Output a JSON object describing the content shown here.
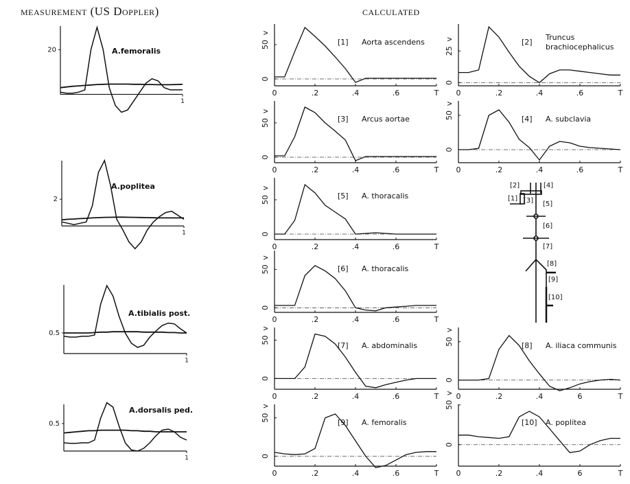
{
  "headers": {
    "measurement": "measurement (US Doppler)",
    "calculated": "calculated"
  },
  "chart_data": [
    {
      "type": "line",
      "title": "A.femoralis",
      "x": [
        0,
        0.05,
        0.1,
        0.15,
        0.2,
        0.25,
        0.3,
        0.35,
        0.4,
        0.45,
        0.5,
        0.55,
        0.6,
        0.65,
        0.7,
        0.75,
        0.8,
        0.85,
        0.9,
        0.95,
        1
      ],
      "series": [
        {
          "values": [
            1,
            0.5,
            0.5,
            1,
            2,
            20,
            30,
            20,
            3,
            -5,
            -8,
            -7,
            -3,
            1,
            5,
            7,
            6,
            3,
            2,
            2,
            2
          ]
        },
        {
          "values": [
            3,
            3.3,
            3.6,
            3.8,
            4,
            4.2,
            4.4,
            4.5,
            4.6,
            4.6,
            4.6,
            4.6,
            4.5,
            4.5,
            4.4,
            4.4,
            4.3,
            4.3,
            4.3,
            4.4,
            4.5
          ]
        }
      ],
      "xlim": [
        0,
        1
      ],
      "xticks": [
        1
      ],
      "ylim": [
        -10,
        33
      ],
      "yticks": [
        20
      ]
    },
    {
      "type": "line",
      "title": "A.poplitea",
      "x": [
        0,
        0.05,
        0.1,
        0.15,
        0.2,
        0.25,
        0.3,
        0.35,
        0.4,
        0.45,
        0.5,
        0.55,
        0.6,
        0.65,
        0.7,
        0.75,
        0.8,
        0.85,
        0.9,
        0.95,
        1
      ],
      "series": [
        {
          "values": [
            0.3,
            0.2,
            0.1,
            0.2,
            0.3,
            1.5,
            4,
            4.9,
            3,
            0.5,
            -0.3,
            -1.2,
            -1.7,
            -1.2,
            -0.3,
            0.3,
            0.7,
            1,
            1.1,
            0.8,
            0.5
          ]
        },
        {
          "values": [
            0.45,
            0.5,
            0.52,
            0.55,
            0.57,
            0.6,
            0.62,
            0.64,
            0.65,
            0.66,
            0.66,
            0.65,
            0.64,
            0.63,
            0.62,
            0.61,
            0.6,
            0.6,
            0.6,
            0.6,
            0.6
          ]
        }
      ],
      "xlim": [
        0,
        1
      ],
      "xticks": [
        1
      ],
      "ylim": [
        -2,
        5.3
      ],
      "yticks": [
        2
      ]
    },
    {
      "type": "line",
      "title": "A.tibialis post.",
      "x": [
        0,
        0.05,
        0.1,
        0.15,
        0.2,
        0.25,
        0.3,
        0.35,
        0.4,
        0.45,
        0.5,
        0.55,
        0.6,
        0.65,
        0.7,
        0.75,
        0.8,
        0.85,
        0.9,
        0.95,
        1
      ],
      "series": [
        {
          "values": [
            0.42,
            0.4,
            0.4,
            0.42,
            0.42,
            0.45,
            1.2,
            1.65,
            1.4,
            0.9,
            0.5,
            0.25,
            0.15,
            0.2,
            0.4,
            0.55,
            0.68,
            0.74,
            0.72,
            0.6,
            0.5
          ]
        },
        {
          "values": [
            0.5,
            0.5,
            0.5,
            0.5,
            0.5,
            0.51,
            0.52,
            0.52,
            0.53,
            0.53,
            0.53,
            0.53,
            0.53,
            0.52,
            0.52,
            0.52,
            0.52,
            0.51,
            0.51,
            0.5,
            0.5
          ]
        }
      ],
      "xlim": [
        0,
        1
      ],
      "xticks": [
        1
      ],
      "ylim": [
        0,
        1.8
      ],
      "yticks": [
        0.5
      ]
    },
    {
      "type": "line",
      "title": "A.dorsalis ped.",
      "x": [
        0,
        0.05,
        0.1,
        0.15,
        0.2,
        0.25,
        0.3,
        0.35,
        0.4,
        0.45,
        0.5,
        0.55,
        0.6,
        0.65,
        0.7,
        0.75,
        0.8,
        0.85,
        0.9,
        0.95,
        1
      ],
      "series": [
        {
          "values": [
            0.15,
            0.14,
            0.14,
            0.15,
            0.15,
            0.2,
            0.6,
            0.88,
            0.8,
            0.45,
            0.15,
            0.02,
            0,
            0.05,
            0.15,
            0.28,
            0.38,
            0.4,
            0.35,
            0.25,
            0.2
          ]
        },
        {
          "values": [
            0.33,
            0.34,
            0.35,
            0.36,
            0.37,
            0.37,
            0.38,
            0.38,
            0.38,
            0.38,
            0.38,
            0.37,
            0.37,
            0.36,
            0.36,
            0.35,
            0.35,
            0.35,
            0.35,
            0.35,
            0.35
          ]
        }
      ],
      "xlim": [
        0,
        1
      ],
      "xticks": [
        1
      ],
      "ylim": [
        -0.1,
        0.95
      ],
      "yticks": [
        0.5
      ]
    },
    {
      "type": "line",
      "label": "[1]",
      "title": "Aorta ascendens",
      "ylabel": "v",
      "x": [
        0,
        0.05,
        0.1,
        0.15,
        0.2,
        0.25,
        0.3,
        0.35,
        0.4,
        0.45,
        0.5,
        0.55,
        0.6,
        0.65,
        0.7,
        0.75,
        0.8
      ],
      "values": [
        3,
        3,
        40,
        75,
        62,
        48,
        32,
        15,
        -5,
        1,
        1,
        1,
        1,
        1,
        1,
        1,
        1
      ],
      "xlim": [
        0,
        0.8
      ],
      "xticks": [
        0,
        {
          "value": 0.2,
          "label": ".2"
        },
        {
          "value": 0.4,
          "label": ".4"
        },
        {
          "value": 0.6,
          "label": ".6"
        },
        {
          "value": 0.8,
          "label": "T"
        }
      ],
      "ylim": [
        -10,
        85
      ],
      "yticks": [
        0,
        50
      ]
    },
    {
      "type": "line",
      "label": "[2]",
      "title": [
        "Truncus",
        "brachiocephalicus"
      ],
      "ylabel": "v",
      "x": [
        0,
        0.05,
        0.1,
        0.15,
        0.2,
        0.25,
        0.3,
        0.35,
        0.4,
        0.45,
        0.5,
        0.55,
        0.6,
        0.65,
        0.7,
        0.75,
        0.8
      ],
      "values": [
        8,
        8,
        10,
        44,
        36,
        24,
        13,
        5,
        0,
        7,
        10,
        10,
        9,
        8,
        7,
        6,
        6
      ],
      "xlim": [
        0,
        0.8
      ],
      "xticks": [
        0,
        {
          "value": 0.2,
          "label": ".2"
        },
        {
          "value": 0.4,
          "label": ".4"
        },
        {
          "value": 0.6,
          "label": ".6"
        },
        {
          "value": 0.8,
          "label": "T"
        }
      ],
      "ylim": [
        -2.5,
        49
      ],
      "yticks": [
        0,
        25
      ]
    },
    {
      "type": "line",
      "label": "[3]",
      "title": "Arcus aortae",
      "ylabel": "v",
      "x": [
        0,
        0.05,
        0.1,
        0.15,
        0.2,
        0.25,
        0.3,
        0.35,
        0.4,
        0.45,
        0.5,
        0.55,
        0.6,
        0.65,
        0.7,
        0.75,
        0.8
      ],
      "values": [
        2,
        2,
        30,
        73,
        65,
        50,
        38,
        25,
        -5,
        1,
        1,
        1,
        1,
        1,
        1,
        1,
        1
      ],
      "xlim": [
        0,
        0.8
      ],
      "xticks": [
        0,
        {
          "value": 0.2,
          "label": ".2"
        },
        {
          "value": 0.4,
          "label": ".4"
        },
        {
          "value": 0.6,
          "label": ".6"
        },
        {
          "value": 0.8,
          "label": "T"
        }
      ],
      "ylim": [
        -8,
        87
      ],
      "yticks": [
        0,
        50
      ]
    },
    {
      "type": "line",
      "label": "[4]",
      "title": "A. subclavia",
      "ylabel": "v",
      "x": [
        0,
        0.05,
        0.1,
        0.15,
        0.2,
        0.25,
        0.3,
        0.35,
        0.4,
        0.45,
        0.5,
        0.55,
        0.6,
        0.65,
        0.7,
        0.75,
        0.8
      ],
      "values": [
        0,
        0,
        2,
        50,
        58,
        40,
        15,
        3,
        -15,
        5,
        12,
        10,
        5,
        3,
        2,
        1,
        0
      ],
      "xlim": [
        0,
        0.8
      ],
      "xticks": [
        0,
        {
          "value": 0.2,
          "label": ".2"
        },
        {
          "value": 0.4,
          "label": ".4"
        },
        {
          "value": 0.6,
          "label": ".6"
        },
        {
          "value": 0.8,
          "label": "T"
        }
      ],
      "ylim": [
        -19,
        76
      ],
      "yticks": [
        0,
        50
      ]
    },
    {
      "type": "line",
      "label": "[5]",
      "title": "A. thoracalis",
      "ylabel": "v",
      "x": [
        0,
        0.05,
        0.1,
        0.15,
        0.2,
        0.25,
        0.3,
        0.35,
        0.4,
        0.45,
        0.5,
        0.55,
        0.6,
        0.65,
        0.7,
        0.75,
        0.8
      ],
      "values": [
        0,
        0,
        20,
        72,
        60,
        42,
        32,
        22,
        0,
        1,
        2,
        1,
        0,
        0,
        0,
        0,
        0
      ],
      "xlim": [
        0,
        0.8
      ],
      "xticks": [
        0,
        {
          "value": 0.2,
          "label": ".2"
        },
        {
          "value": 0.4,
          "label": ".4"
        },
        {
          "value": 0.6,
          "label": ".6"
        },
        {
          "value": 0.8,
          "label": "T"
        }
      ],
      "ylim": [
        -8,
        87
      ],
      "yticks": [
        0,
        50
      ]
    },
    {
      "type": "line",
      "label": "[6]",
      "title": "A. thoracalis",
      "ylabel": "v",
      "x": [
        0,
        0.05,
        0.1,
        0.15,
        0.2,
        0.25,
        0.3,
        0.35,
        0.4,
        0.45,
        0.5,
        0.55,
        0.6,
        0.65,
        0.7,
        0.75,
        0.8
      ],
      "values": [
        3,
        3,
        3,
        42,
        55,
        48,
        38,
        22,
        0,
        -3,
        -4,
        0,
        1,
        2,
        3,
        3,
        3
      ],
      "xlim": [
        0,
        0.8
      ],
      "xticks": [
        0,
        {
          "value": 0.2,
          "label": ".2"
        },
        {
          "value": 0.4,
          "label": ".4"
        },
        {
          "value": 0.6,
          "label": ".6"
        },
        {
          "value": 0.8,
          "label": "T"
        }
      ],
      "ylim": [
        -6,
        79
      ],
      "yticks": [
        0,
        50
      ]
    },
    {
      "type": "line",
      "label": "[7]",
      "title": "A. abdominalis",
      "ylabel": "v",
      "x": [
        0,
        0.05,
        0.1,
        0.15,
        0.2,
        0.25,
        0.3,
        0.35,
        0.4,
        0.45,
        0.5,
        0.55,
        0.6,
        0.65,
        0.7,
        0.75,
        0.8
      ],
      "values": [
        0,
        0,
        0,
        15,
        58,
        55,
        45,
        28,
        8,
        -10,
        -12,
        -8,
        -5,
        -2,
        0,
        0,
        0
      ],
      "xlim": [
        0,
        0.8
      ],
      "xticks": [
        0,
        {
          "value": 0.2,
          "label": ".2"
        },
        {
          "value": 0.4,
          "label": ".4"
        },
        {
          "value": 0.6,
          "label": ".6"
        },
        {
          "value": 0.8,
          "label": "T"
        }
      ],
      "ylim": [
        -14,
        71
      ],
      "yticks": [
        0,
        50
      ]
    },
    {
      "type": "line",
      "label": "[8]",
      "title": "A. iliaca communis",
      "ylabel": "v",
      "x": [
        0,
        0.05,
        0.1,
        0.15,
        0.2,
        0.25,
        0.3,
        0.35,
        0.4,
        0.45,
        0.5,
        0.55,
        0.6,
        0.65,
        0.7,
        0.75,
        0.8
      ],
      "values": [
        0,
        0,
        0,
        2,
        40,
        58,
        45,
        25,
        8,
        -8,
        -14,
        -10,
        -5,
        -2,
        0,
        1,
        0
      ],
      "xlim": [
        0,
        0.8
      ],
      "xticks": [
        0,
        {
          "value": 0.2,
          "label": ".2"
        },
        {
          "value": 0.4,
          "label": ".4"
        },
        {
          "value": 0.6,
          "label": "6"
        },
        {
          "value": 0.8,
          "label": "T"
        }
      ],
      "ylim": [
        -12,
        73
      ],
      "yticks": [
        0,
        50
      ]
    },
    {
      "type": "line",
      "label": "[9]",
      "title": "A. femoralis",
      "ylabel": "v",
      "x": [
        0,
        0.05,
        0.1,
        0.15,
        0.2,
        0.25,
        0.3,
        0.35,
        0.4,
        0.45,
        0.5,
        0.55,
        0.6,
        0.65,
        0.7,
        0.75,
        0.8
      ],
      "values": [
        5,
        3,
        2,
        3,
        10,
        50,
        55,
        40,
        20,
        0,
        -15,
        -12,
        -5,
        2,
        5,
        6,
        6
      ],
      "xlim": [
        0,
        0.8
      ],
      "xticks": [
        0,
        {
          "value": 0.2,
          "label": ".2"
        },
        {
          "value": 0.4,
          "label": ".4"
        },
        {
          "value": 0.6,
          "label": ".6"
        },
        {
          "value": 0.8,
          "label": "T"
        }
      ],
      "ylim": [
        -13,
        72
      ],
      "yticks": [
        0,
        50
      ]
    },
    {
      "type": "line",
      "label": "[10]",
      "title": "A. poplitea",
      "ylabel": "v",
      "x": [
        0,
        0.05,
        0.1,
        0.15,
        0.2,
        0.25,
        0.3,
        0.35,
        0.4,
        0.45,
        0.5,
        0.55,
        0.6,
        0.65,
        0.7,
        0.75,
        0.8
      ],
      "values": [
        12,
        12,
        10,
        9,
        8,
        10,
        35,
        42,
        35,
        20,
        5,
        -10,
        -8,
        0,
        5,
        8,
        8
      ],
      "xlim": [
        0,
        0.8
      ],
      "xticks": [
        0,
        {
          "value": 0.2,
          "label": ".2"
        },
        {
          "value": 0.4,
          "label": ".4"
        },
        {
          "value": 0.6,
          "label": "6"
        },
        {
          "value": 0.8,
          "label": "T"
        }
      ],
      "ylim": [
        -27,
        55
      ],
      "yticks": [
        0,
        50
      ]
    }
  ],
  "diagram": {
    "labels": [
      "[2]",
      "[4]",
      "[1]",
      "[3]",
      "[5]",
      "[6]",
      "[7]",
      "[8]",
      "[9]",
      "[10]"
    ]
  }
}
